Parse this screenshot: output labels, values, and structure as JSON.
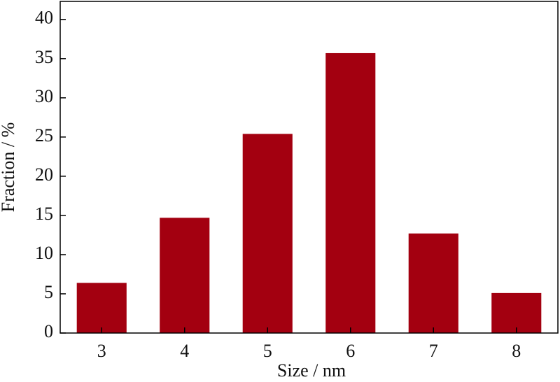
{
  "chart_data": {
    "type": "bar",
    "xlabel": "Size / nm",
    "ylabel": "Fraction / %",
    "categories": [
      "3",
      "4",
      "5",
      "6",
      "7",
      "8"
    ],
    "values": [
      6.4,
      14.7,
      25.4,
      35.7,
      12.7,
      5.1
    ],
    "color": "#a30010",
    "ylim": [
      0,
      42.3
    ],
    "yticks": [
      0,
      5,
      10,
      15,
      20,
      25,
      30,
      35,
      40
    ],
    "grid": false
  }
}
